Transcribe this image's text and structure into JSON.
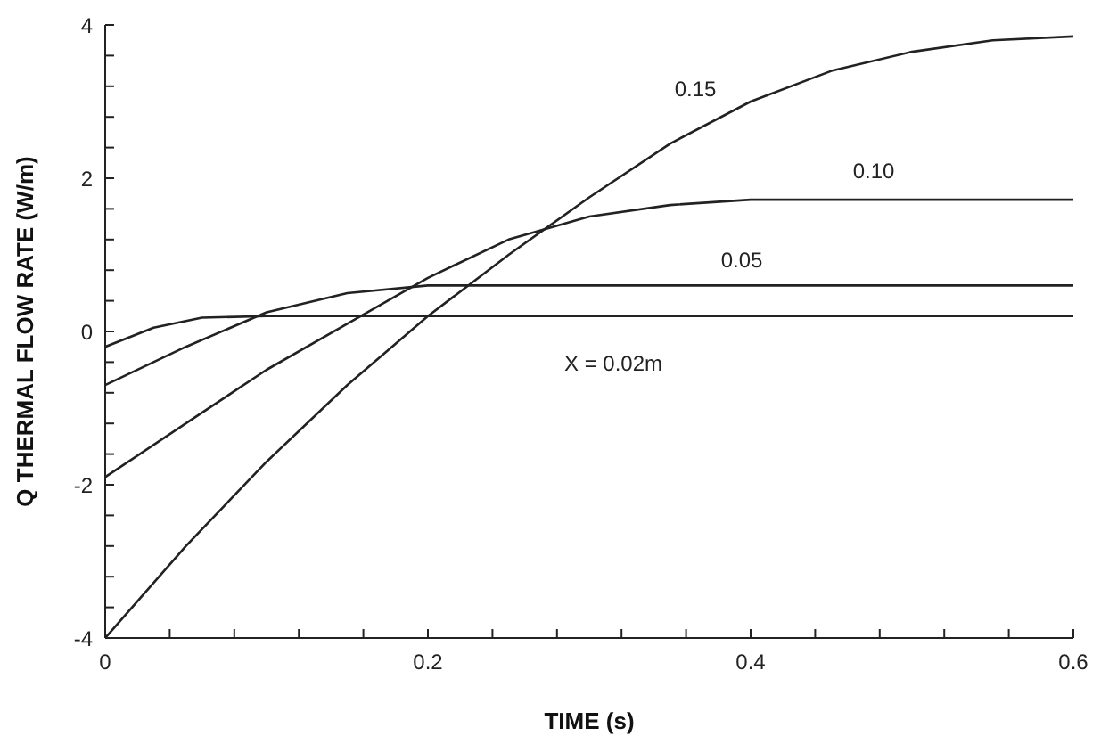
{
  "chart_data": {
    "type": "line",
    "xlabel": "TIME (s)",
    "ylabel": "Q THERMAL FLOW RATE (W/m)",
    "xlim": [
      0,
      0.6
    ],
    "ylim": [
      -4,
      4
    ],
    "xticks": [
      0,
      {
        "value": 0.04,
        "label": null
      },
      {
        "value": 0.08,
        "label": null
      },
      {
        "value": 0.12,
        "label": null
      },
      {
        "value": 0.16,
        "label": null
      },
      0.2,
      {
        "value": 0.24,
        "label": null
      },
      {
        "value": 0.28,
        "label": null
      },
      {
        "value": 0.32,
        "label": null
      },
      {
        "value": 0.36,
        "label": null
      },
      0.4,
      {
        "value": 0.44,
        "label": null
      },
      {
        "value": 0.48,
        "label": null
      },
      {
        "value": 0.52,
        "label": null
      },
      {
        "value": 0.56,
        "label": null
      },
      0.6
    ],
    "yticks": [
      -4,
      {
        "value": -3.6,
        "label": null
      },
      {
        "value": -3.2,
        "label": null
      },
      {
        "value": -2.8,
        "label": null
      },
      {
        "value": -2.4,
        "label": null
      },
      -2,
      {
        "value": -1.6,
        "label": null
      },
      {
        "value": -1.2,
        "label": null
      },
      {
        "value": -0.8,
        "label": null
      },
      {
        "value": -0.4,
        "label": null
      },
      0,
      {
        "value": 0.4,
        "label": null
      },
      {
        "value": 0.8,
        "label": null
      },
      {
        "value": 1.2,
        "label": null
      },
      {
        "value": 1.6,
        "label": null
      },
      2,
      {
        "value": 2.4,
        "label": null
      },
      {
        "value": 2.8,
        "label": null
      },
      {
        "value": 3.2,
        "label": null
      },
      {
        "value": 3.6,
        "label": null
      },
      4
    ],
    "grid": false,
    "legend": false,
    "marker": "none",
    "line_style": "solid",
    "series": [
      {
        "name": "X = 0.02m",
        "color": "#222222",
        "x": [
          0,
          0.03,
          0.06,
          0.1,
          0.2,
          0.4,
          0.6
        ],
        "values": [
          -0.2,
          0.05,
          0.18,
          0.2,
          0.2,
          0.2,
          0.2
        ]
      },
      {
        "name": "0.05",
        "color": "#222222",
        "x": [
          0,
          0.05,
          0.1,
          0.15,
          0.2,
          0.25,
          0.4,
          0.6
        ],
        "values": [
          -0.7,
          -0.2,
          0.25,
          0.5,
          0.6,
          0.6,
          0.6,
          0.6
        ]
      },
      {
        "name": "0.10",
        "color": "#222222",
        "x": [
          0,
          0.05,
          0.1,
          0.15,
          0.2,
          0.25,
          0.3,
          0.35,
          0.4,
          0.5,
          0.6
        ],
        "values": [
          -1.9,
          -1.2,
          -0.5,
          0.1,
          0.7,
          1.2,
          1.5,
          1.65,
          1.72,
          1.72,
          1.72
        ]
      },
      {
        "name": "0.15",
        "color": "#222222",
        "x": [
          0,
          0.05,
          0.1,
          0.15,
          0.2,
          0.25,
          0.3,
          0.35,
          0.4,
          0.45,
          0.5,
          0.55,
          0.6
        ],
        "values": [
          -4,
          -2.8,
          -1.7,
          -0.7,
          0.2,
          1.0,
          1.75,
          2.45,
          3.0,
          3.4,
          3.65,
          3.8,
          3.85
        ]
      }
    ]
  }
}
